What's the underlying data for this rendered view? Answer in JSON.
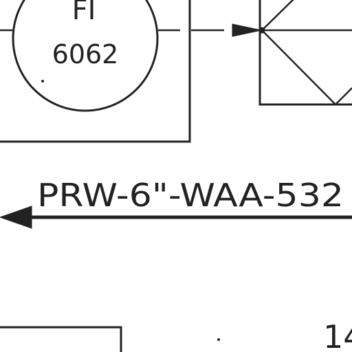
{
  "instrument": {
    "tag_letters": "FI",
    "tag_number": "6062"
  },
  "process_line": {
    "label": "PRW-6\"-WAA-532"
  },
  "partial_label": {
    "text": "14"
  },
  "colors": {
    "ink": "#222222",
    "paper": "#ffffff"
  }
}
